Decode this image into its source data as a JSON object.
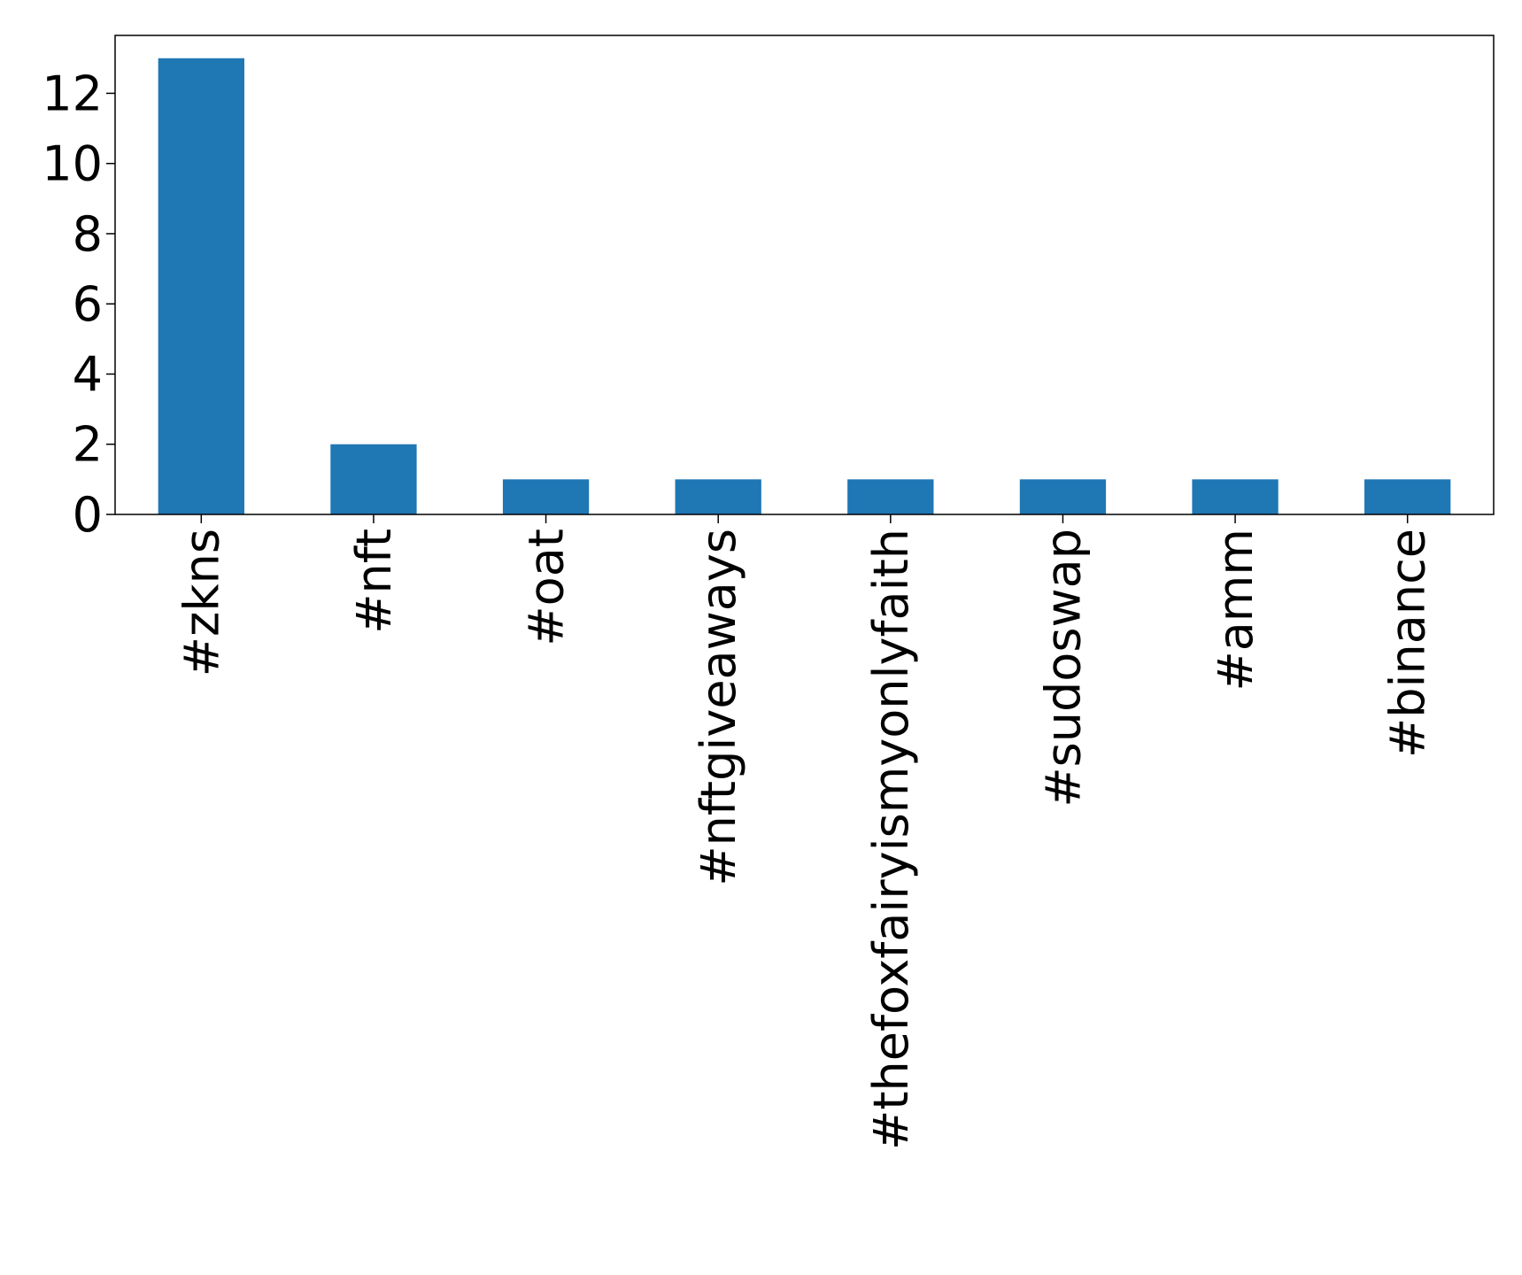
{
  "chart_data": {
    "type": "bar",
    "categories": [
      "#zkns",
      "#nft",
      "#oat",
      "#nftgiveaways",
      "#thefoxfairyismyonlyfaith",
      "#sudoswap",
      "#amm",
      "#binance"
    ],
    "values": [
      13,
      2,
      1,
      1,
      1,
      1,
      1,
      1
    ],
    "color": "#1f77b4",
    "ylim": [
      0,
      13.65
    ],
    "yticks": [
      0,
      2,
      4,
      6,
      8,
      10,
      12
    ],
    "grid": false
  }
}
